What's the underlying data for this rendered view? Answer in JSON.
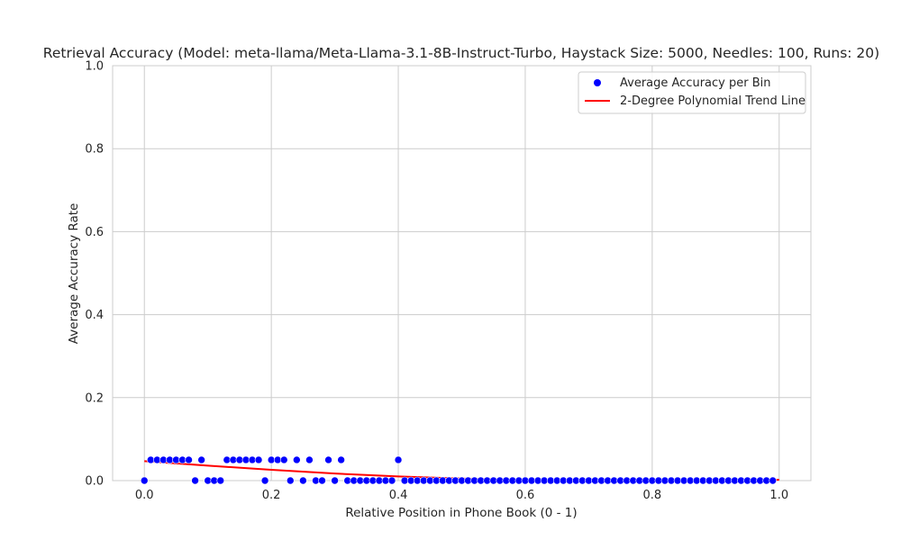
{
  "chart_data": {
    "type": "scatter",
    "title": "Retrieval Accuracy (Model: meta-llama/Meta-Llama-3.1-8B-Instruct-Turbo, Haystack Size: 5000, Needles: 100, Runs: 20)",
    "xlabel": "Relative Position in Phone Book (0 - 1)",
    "ylabel": "Average Accuracy Rate",
    "xlim": [
      -0.05,
      1.05
    ],
    "ylim": [
      0,
      1
    ],
    "xticks": [
      "0.0",
      "0.2",
      "0.4",
      "0.6",
      "0.8",
      "1.0"
    ],
    "yticks": [
      "0.0",
      "0.2",
      "0.4",
      "0.6",
      "0.8",
      "1.0"
    ],
    "grid": true,
    "legend_position": "top-right",
    "colors": {
      "scatter": "#0000ff",
      "trend": "#ff0000",
      "grid": "#cccccc",
      "axes": "#cccccc"
    },
    "series": [
      {
        "name": "Average Accuracy per Bin",
        "kind": "scatter",
        "x": [
          0.0,
          0.01,
          0.02,
          0.03,
          0.04,
          0.05,
          0.06,
          0.07,
          0.08,
          0.09,
          0.1,
          0.11,
          0.12,
          0.13,
          0.14,
          0.15,
          0.16,
          0.17,
          0.18,
          0.19,
          0.2,
          0.21,
          0.22,
          0.23,
          0.24,
          0.25,
          0.26,
          0.27,
          0.28,
          0.29,
          0.3,
          0.31,
          0.32,
          0.33,
          0.34,
          0.35,
          0.36,
          0.37,
          0.38,
          0.39,
          0.4,
          0.41,
          0.42,
          0.43,
          0.44,
          0.45,
          0.46,
          0.47,
          0.48,
          0.49,
          0.5,
          0.51,
          0.52,
          0.53,
          0.54,
          0.55,
          0.56,
          0.57,
          0.58,
          0.59,
          0.6,
          0.61,
          0.62,
          0.63,
          0.64,
          0.65,
          0.66,
          0.67,
          0.68,
          0.69,
          0.7,
          0.71,
          0.72,
          0.73,
          0.74,
          0.75,
          0.76,
          0.77,
          0.78,
          0.79,
          0.8,
          0.81,
          0.82,
          0.83,
          0.84,
          0.85,
          0.86,
          0.87,
          0.88,
          0.89,
          0.9,
          0.91,
          0.92,
          0.93,
          0.94,
          0.95,
          0.96,
          0.97,
          0.98,
          0.99
        ],
        "y": [
          0.0,
          0.05,
          0.05,
          0.05,
          0.05,
          0.05,
          0.05,
          0.05,
          0.0,
          0.05,
          0.0,
          0.0,
          0.0,
          0.05,
          0.05,
          0.05,
          0.05,
          0.05,
          0.05,
          0.0,
          0.05,
          0.05,
          0.05,
          0.0,
          0.05,
          0.0,
          0.05,
          0.0,
          0.0,
          0.05,
          0.0,
          0.05,
          0.0,
          0.0,
          0.0,
          0.0,
          0.0,
          0.0,
          0.0,
          0.0,
          0.05,
          0.0,
          0.0,
          0.0,
          0.0,
          0.0,
          0.0,
          0.0,
          0.0,
          0.0,
          0.0,
          0.0,
          0.0,
          0.0,
          0.0,
          0.0,
          0.0,
          0.0,
          0.0,
          0.0,
          0.0,
          0.0,
          0.0,
          0.0,
          0.0,
          0.0,
          0.0,
          0.0,
          0.0,
          0.0,
          0.0,
          0.0,
          0.0,
          0.0,
          0.0,
          0.0,
          0.0,
          0.0,
          0.0,
          0.0,
          0.0,
          0.0,
          0.0,
          0.0,
          0.0,
          0.0,
          0.0,
          0.0,
          0.0,
          0.0,
          0.0,
          0.0,
          0.0,
          0.0,
          0.0,
          0.0,
          0.0,
          0.0,
          0.0,
          0.0
        ]
      },
      {
        "name": "2-Degree Polynomial Trend Line",
        "kind": "line",
        "x": [
          0.0,
          0.1,
          0.2,
          0.3,
          0.4,
          0.5,
          0.6,
          0.7,
          0.8,
          0.9,
          1.0
        ],
        "y": [
          0.047,
          0.036,
          0.026,
          0.017,
          0.01,
          0.005,
          0.002,
          0.001,
          0.001,
          0.001,
          0.002
        ]
      }
    ]
  }
}
